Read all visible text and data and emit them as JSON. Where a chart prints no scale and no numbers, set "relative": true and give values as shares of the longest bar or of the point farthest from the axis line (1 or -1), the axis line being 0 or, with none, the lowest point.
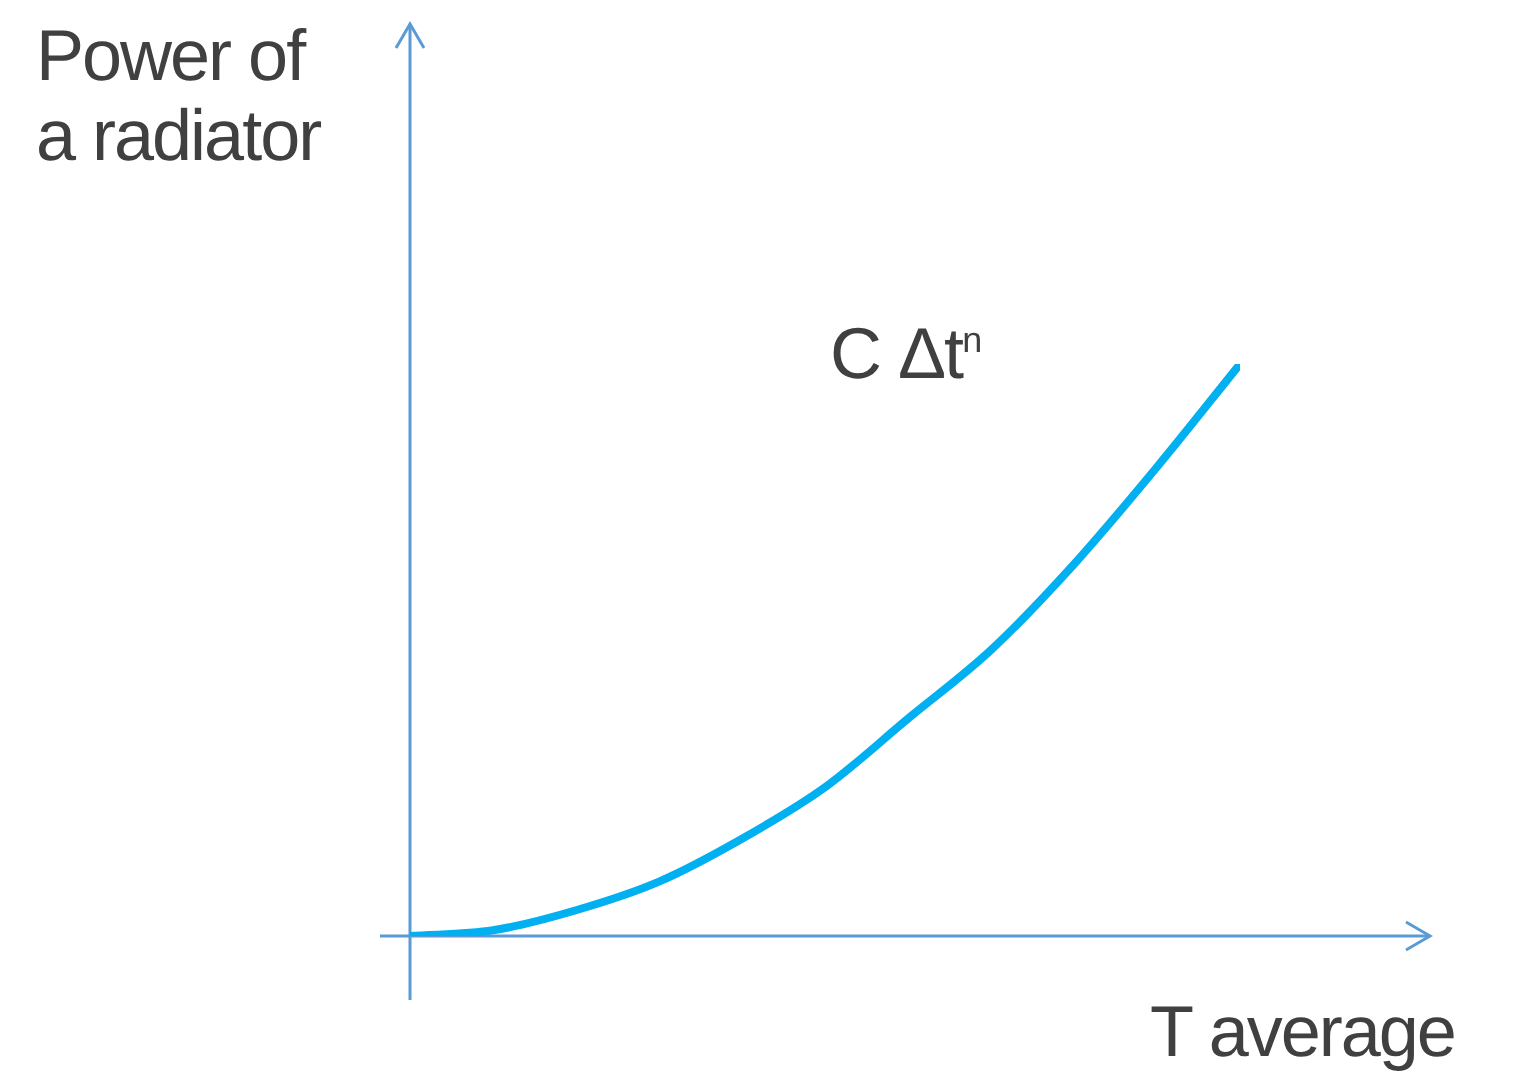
{
  "chart_data": {
    "type": "line",
    "relative": true,
    "xlabel": "T average",
    "ylabel": "Power of a radiator",
    "annotations": [
      "C Δt$^{n}$"
    ],
    "categories": [
      null,
      null,
      null,
      null,
      null,
      null,
      null,
      null,
      null,
      null,
      null
    ],
    "series": [
      {
        "color": "#00b0f0",
        "values": [
          0,
          0.01,
          0.045,
          0.095,
          0.17,
          0.26,
          0.38,
          0.5,
          0.65,
          0.82,
          1
        ]
      }
    ],
    "legend": false,
    "grid": false,
    "marker": "none",
    "line_style": "solid"
  }
}
